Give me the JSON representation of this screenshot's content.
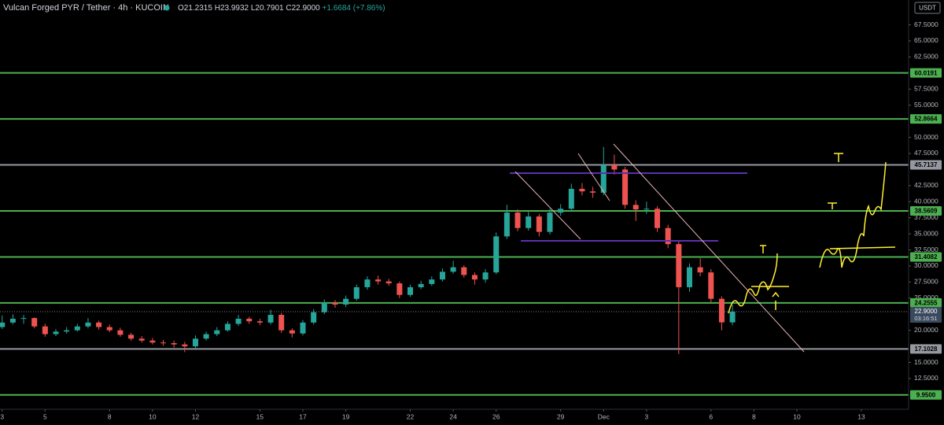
{
  "chart_data": {
    "type": "candlestick",
    "title": "Vulcan Forged PYR / Tether · 4h · KUCOIN",
    "legend_values": [
      "O21.2315",
      "H23.9932",
      "L20.7901",
      "C22.9000",
      "+1.6684 (+7.86%)"
    ],
    "currency": "USDT",
    "up_color": "#26a69a",
    "down_color": "#ef5350",
    "xlim": [
      -0.1,
      42.2
    ],
    "ylim": [
      7.72,
      71.36
    ],
    "xticks": [
      {
        "value": 0,
        "label": "3"
      },
      {
        "value": 2,
        "label": "5"
      },
      {
        "value": 5,
        "label": "8"
      },
      {
        "value": 7,
        "label": "10"
      },
      {
        "value": 9,
        "label": "12"
      },
      {
        "value": 12,
        "label": "15"
      },
      {
        "value": 14,
        "label": "17"
      },
      {
        "value": 16,
        "label": "19"
      },
      {
        "value": 19,
        "label": "22"
      },
      {
        "value": 21,
        "label": "24"
      },
      {
        "value": 23,
        "label": "26"
      },
      {
        "value": 26,
        "label": "29"
      },
      {
        "value": 28,
        "label": "Dec"
      },
      {
        "value": 30,
        "label": "3"
      },
      {
        "value": 33,
        "label": "6"
      },
      {
        "value": 35,
        "label": "8"
      },
      {
        "value": 37,
        "label": "10"
      },
      {
        "value": 40,
        "label": "13"
      }
    ],
    "yticks": [
      {
        "value": 12.5,
        "label": "12.5000"
      },
      {
        "value": 15,
        "label": "15.0000"
      },
      {
        "value": 20,
        "label": "20.0000"
      },
      {
        "value": 25,
        "label": "25.0000"
      },
      {
        "value": 27.5,
        "label": "27.5000"
      },
      {
        "value": 30,
        "label": "30.0000"
      },
      {
        "value": 32.5,
        "label": "32.5000"
      },
      {
        "value": 35,
        "label": "35.0000"
      },
      {
        "value": 37.5,
        "label": "37.5000"
      },
      {
        "value": 40,
        "label": "40.0000"
      },
      {
        "value": 42.5,
        "label": "42.5000"
      },
      {
        "value": 47.5,
        "label": "47.5000"
      },
      {
        "value": 50,
        "label": "50.0000"
      },
      {
        "value": 55,
        "label": "55.0000"
      },
      {
        "value": 57.5,
        "label": "57.5000"
      },
      {
        "value": 62.5,
        "label": "62.5000"
      },
      {
        "value": 65,
        "label": "65.0000"
      },
      {
        "value": 67.5,
        "label": "67.5000"
      }
    ],
    "levels": [
      {
        "value": 60.0191,
        "color": "#4caf50"
      },
      {
        "value": 52.8664,
        "color": "#4caf50"
      },
      {
        "value": 45.7137,
        "color": "#9598a1"
      },
      {
        "value": 38.5609,
        "color": "#4caf50"
      },
      {
        "value": 31.4082,
        "color": "#4caf50"
      },
      {
        "value": 24.2555,
        "color": "#4caf50"
      },
      {
        "value": 17.1028,
        "color": "#9598a1"
      },
      {
        "value": 9.95,
        "label": "9.9500",
        "color": "#4caf50"
      }
    ],
    "last": {
      "value": 22.9,
      "label": "22.9000",
      "countdown": "03:16:51"
    },
    "candles": [
      {
        "x": 0,
        "o": 20.5,
        "h": 22.3,
        "l": 20.2,
        "c": 21.2
      },
      {
        "x": 0.5,
        "o": 21.2,
        "h": 22.5,
        "l": 20.9,
        "c": 21.8
      },
      {
        "x": 1,
        "o": 21.8,
        "h": 22.4,
        "l": 21.0,
        "c": 21.9
      },
      {
        "x": 1.5,
        "o": 21.9,
        "h": 22.0,
        "l": 20.3,
        "c": 20.6
      },
      {
        "x": 2,
        "o": 20.6,
        "h": 21.0,
        "l": 19.0,
        "c": 19.4
      },
      {
        "x": 2.5,
        "o": 19.4,
        "h": 20.2,
        "l": 19.1,
        "c": 19.8
      },
      {
        "x": 3,
        "o": 19.8,
        "h": 20.5,
        "l": 19.5,
        "c": 20.0
      },
      {
        "x": 3.5,
        "o": 20.0,
        "h": 21.0,
        "l": 19.8,
        "c": 20.6
      },
      {
        "x": 4,
        "o": 20.6,
        "h": 21.9,
        "l": 20.3,
        "c": 21.2
      },
      {
        "x": 4.5,
        "o": 21.2,
        "h": 21.5,
        "l": 20.1,
        "c": 20.5
      },
      {
        "x": 5,
        "o": 20.5,
        "h": 20.9,
        "l": 19.7,
        "c": 20.0
      },
      {
        "x": 5.5,
        "o": 20.0,
        "h": 20.4,
        "l": 19.0,
        "c": 19.3
      },
      {
        "x": 6,
        "o": 19.3,
        "h": 19.6,
        "l": 18.4,
        "c": 18.7
      },
      {
        "x": 6.5,
        "o": 18.7,
        "h": 19.1,
        "l": 18.1,
        "c": 18.4
      },
      {
        "x": 7,
        "o": 18.4,
        "h": 18.8,
        "l": 17.8,
        "c": 18.1
      },
      {
        "x": 7.5,
        "o": 18.1,
        "h": 18.5,
        "l": 17.6,
        "c": 18.0
      },
      {
        "x": 8,
        "o": 18.0,
        "h": 18.4,
        "l": 17.3,
        "c": 17.8
      },
      {
        "x": 8.5,
        "o": 17.8,
        "h": 18.2,
        "l": 16.6,
        "c": 17.5
      },
      {
        "x": 9,
        "o": 17.5,
        "h": 19.2,
        "l": 17.2,
        "c": 18.7
      },
      {
        "x": 9.5,
        "o": 18.7,
        "h": 19.8,
        "l": 18.4,
        "c": 19.4
      },
      {
        "x": 10,
        "o": 19.4,
        "h": 20.5,
        "l": 19.1,
        "c": 20.0
      },
      {
        "x": 10.5,
        "o": 20.0,
        "h": 21.4,
        "l": 19.8,
        "c": 21.0
      },
      {
        "x": 11,
        "o": 21.0,
        "h": 22.4,
        "l": 20.7,
        "c": 21.8
      },
      {
        "x": 11.5,
        "o": 21.8,
        "h": 22.1,
        "l": 21.0,
        "c": 21.4
      },
      {
        "x": 12,
        "o": 21.4,
        "h": 21.8,
        "l": 20.8,
        "c": 21.2
      },
      {
        "x": 12.5,
        "o": 21.2,
        "h": 23.2,
        "l": 20.9,
        "c": 22.4
      },
      {
        "x": 13,
        "o": 22.4,
        "h": 22.7,
        "l": 19.6,
        "c": 20.0
      },
      {
        "x": 13.5,
        "o": 20.0,
        "h": 20.3,
        "l": 18.9,
        "c": 19.5
      },
      {
        "x": 14,
        "o": 19.5,
        "h": 21.6,
        "l": 19.2,
        "c": 21.2
      },
      {
        "x": 14.5,
        "o": 21.2,
        "h": 23.3,
        "l": 20.9,
        "c": 22.8
      },
      {
        "x": 15,
        "o": 22.8,
        "h": 24.8,
        "l": 22.5,
        "c": 24.3
      },
      {
        "x": 15.5,
        "o": 24.3,
        "h": 24.7,
        "l": 23.5,
        "c": 24.0
      },
      {
        "x": 16,
        "o": 24.0,
        "h": 25.4,
        "l": 23.6,
        "c": 24.9
      },
      {
        "x": 16.5,
        "o": 24.9,
        "h": 27.1,
        "l": 24.6,
        "c": 26.7
      },
      {
        "x": 17,
        "o": 26.7,
        "h": 28.4,
        "l": 26.3,
        "c": 27.9
      },
      {
        "x": 17.5,
        "o": 27.9,
        "h": 28.5,
        "l": 27.1,
        "c": 27.6
      },
      {
        "x": 18,
        "o": 27.6,
        "h": 28.0,
        "l": 26.9,
        "c": 27.3
      },
      {
        "x": 18.5,
        "o": 27.3,
        "h": 27.6,
        "l": 25.0,
        "c": 25.5
      },
      {
        "x": 19,
        "o": 25.5,
        "h": 27.1,
        "l": 25.2,
        "c": 26.7
      },
      {
        "x": 19.5,
        "o": 26.7,
        "h": 27.7,
        "l": 26.4,
        "c": 27.2
      },
      {
        "x": 20,
        "o": 27.2,
        "h": 28.4,
        "l": 26.9,
        "c": 27.9
      },
      {
        "x": 20.5,
        "o": 27.9,
        "h": 29.6,
        "l": 27.6,
        "c": 29.1
      },
      {
        "x": 21,
        "o": 29.1,
        "h": 30.8,
        "l": 28.8,
        "c": 29.8
      },
      {
        "x": 21.5,
        "o": 29.8,
        "h": 30.1,
        "l": 28.2,
        "c": 28.6
      },
      {
        "x": 22,
        "o": 28.6,
        "h": 29.0,
        "l": 27.1,
        "c": 27.9
      },
      {
        "x": 22.5,
        "o": 27.9,
        "h": 29.5,
        "l": 27.4,
        "c": 29.0
      },
      {
        "x": 23,
        "o": 29.0,
        "h": 35.2,
        "l": 28.7,
        "c": 34.6
      },
      {
        "x": 23.5,
        "o": 34.6,
        "h": 39.5,
        "l": 34.2,
        "c": 38.3
      },
      {
        "x": 24,
        "o": 38.3,
        "h": 38.8,
        "l": 35.4,
        "c": 35.9
      },
      {
        "x": 24.5,
        "o": 35.9,
        "h": 38.4,
        "l": 35.5,
        "c": 37.7
      },
      {
        "x": 25,
        "o": 37.7,
        "h": 38.1,
        "l": 34.6,
        "c": 35.3
      },
      {
        "x": 25.5,
        "o": 35.3,
        "h": 38.9,
        "l": 34.9,
        "c": 38.3
      },
      {
        "x": 26,
        "o": 38.3,
        "h": 39.6,
        "l": 37.8,
        "c": 38.9
      },
      {
        "x": 26.5,
        "o": 38.9,
        "h": 42.8,
        "l": 38.5,
        "c": 42.0
      },
      {
        "x": 27,
        "o": 42.0,
        "h": 42.9,
        "l": 41.0,
        "c": 41.6
      },
      {
        "x": 27.5,
        "o": 41.6,
        "h": 42.3,
        "l": 40.6,
        "c": 41.4
      },
      {
        "x": 28,
        "o": 41.4,
        "h": 48.5,
        "l": 41.0,
        "c": 45.7
      },
      {
        "x": 28.5,
        "o": 45.7,
        "h": 47.3,
        "l": 44.2,
        "c": 45.0
      },
      {
        "x": 29,
        "o": 45.0,
        "h": 45.4,
        "l": 38.9,
        "c": 39.5
      },
      {
        "x": 29.5,
        "o": 39.5,
        "h": 40.2,
        "l": 37.0,
        "c": 38.8
      },
      {
        "x": 30,
        "o": 38.8,
        "h": 40.0,
        "l": 38.1,
        "c": 38.9
      },
      {
        "x": 30.5,
        "o": 38.9,
        "h": 39.3,
        "l": 35.3,
        "c": 35.9
      },
      {
        "x": 31,
        "o": 35.9,
        "h": 36.4,
        "l": 32.8,
        "c": 33.4
      },
      {
        "x": 31.5,
        "o": 33.4,
        "h": 33.9,
        "l": 16.3,
        "c": 26.7
      },
      {
        "x": 32,
        "o": 26.7,
        "h": 30.4,
        "l": 26.0,
        "c": 29.8
      },
      {
        "x": 32.5,
        "o": 29.8,
        "h": 31.2,
        "l": 28.4,
        "c": 29.0
      },
      {
        "x": 33,
        "o": 29.0,
        "h": 29.5,
        "l": 24.3,
        "c": 24.9
      },
      {
        "x": 33.5,
        "o": 24.9,
        "h": 25.3,
        "l": 20.0,
        "c": 21.23
      },
      {
        "x": 34,
        "o": 21.2315,
        "h": 23.9932,
        "l": 20.7901,
        "c": 22.9
      }
    ]
  }
}
